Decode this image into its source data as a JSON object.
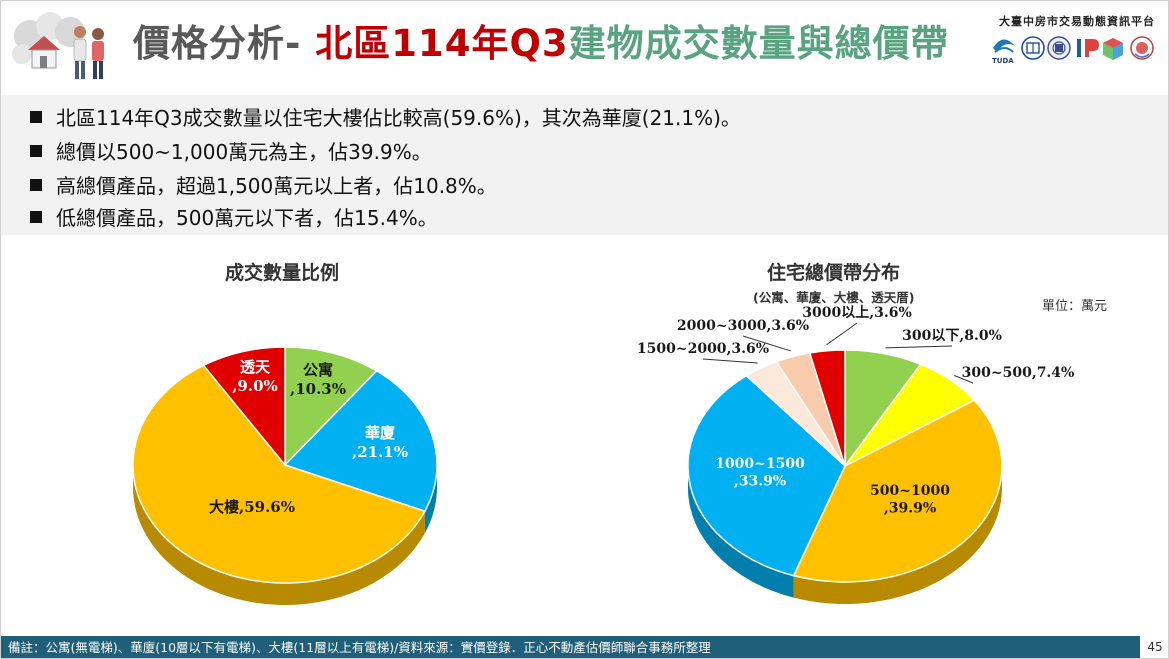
{
  "header": {
    "title_part1": "價格分析- ",
    "title_part2": "北區114年Q3",
    "title_part3": "建物成交數量與總價帶",
    "platform_name": "大臺中房市交易動態資訊平台",
    "logo_caption": "TUDA"
  },
  "bullets": [
    "北區114年Q3成交數量以住宅大樓佔比較高(59.6%)，其次為華廈(21.1%)。",
    "總價以500~1,000萬元為主，佔39.9%。",
    "高總價產品，超過1,500萬元以上者，佔10.8%。",
    "低總價產品，500萬元以下者，佔15.4%。"
  ],
  "charts": {
    "left": {
      "title": "成交數量比例"
    },
    "right": {
      "title": "住宅總價帶分布",
      "subtitle": "(公寓、華廈、大樓、透天厝)",
      "unit": "單位：萬元"
    }
  },
  "chart_data": [
    {
      "type": "pie",
      "title": "成交數量比例",
      "categories": [
        "公寓",
        "華廈",
        "大樓",
        "透天"
      ],
      "values": [
        10.3,
        21.1,
        59.6,
        9.0
      ],
      "labels": [
        "公寓,10.3%",
        "華廈,21.1%",
        "大樓,59.6%",
        "透天,9.0%"
      ],
      "colors": [
        "#92d050",
        "#00b0f0",
        "#ffc000",
        "#e00000"
      ]
    },
    {
      "type": "pie",
      "title": "住宅總價帶分布",
      "subtitle": "(公寓、華廈、大樓、透天厝)",
      "unit": "單位：萬元",
      "categories": [
        "300以下",
        "300~500",
        "500~1000",
        "1000~1500",
        "1500~2000",
        "2000~3000",
        "3000以上"
      ],
      "values": [
        8.0,
        7.4,
        39.9,
        33.9,
        3.6,
        3.6,
        3.6
      ],
      "labels": [
        "300以下,8.0%",
        "300~500,7.4%",
        "500~1000,39.9%",
        "1000~1500,33.9%",
        "1500~2000,3.6%",
        "2000~3000,3.6%",
        "3000以上,3.6%"
      ],
      "colors": [
        "#92d050",
        "#ffff00",
        "#ffc000",
        "#00b0f0",
        "#fde9d9",
        "#f8cbad",
        "#e00000"
      ]
    }
  ],
  "footer": {
    "note": "備註：公寓(無電梯)、華廈(10層以下有電梯)、大樓(11層以上有電梯)/資料來源：實價登錄．正心不動產估價師聯合事務所整理",
    "page_number": "45"
  }
}
